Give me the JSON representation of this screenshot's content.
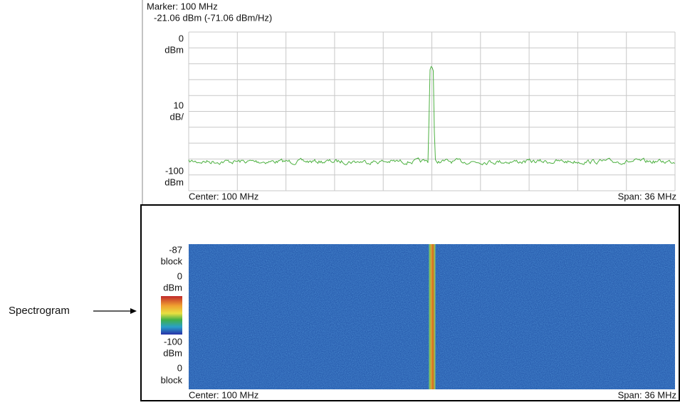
{
  "marker": {
    "frequency": "Marker: 100 MHz",
    "reading": "-21.06 dBm (-71.06 dBm/Hz)"
  },
  "spectrum": {
    "y_labels": [
      "0",
      "dBm",
      "10",
      "dB/",
      "-100",
      "dBm"
    ],
    "center": "Center: 100 MHz",
    "span": "Span: 36 MHz"
  },
  "spectrogram": {
    "y_labels": [
      "-87",
      "block",
      "0",
      "dBm",
      "-100",
      "dBm",
      "0",
      "block"
    ],
    "center": "Center: 100 MHz",
    "span": "Span: 36 MHz"
  },
  "callout": "Spectrogram"
}
